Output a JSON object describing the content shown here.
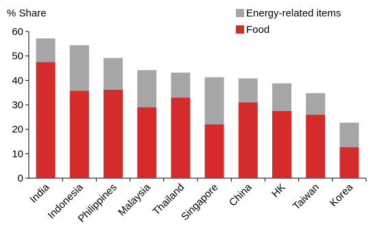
{
  "chart_data": {
    "type": "bar",
    "stacked": true,
    "ylabel": "% Share",
    "xlabel": "",
    "ylim": [
      0,
      60
    ],
    "yticks": [
      "0",
      "10",
      "20",
      "30",
      "40",
      "50",
      "60"
    ],
    "grid": false,
    "legend_position": "top-right",
    "categories": [
      "India",
      "Indonesia",
      "Philippines",
      "Malaysia",
      "Thailand",
      "Singapore",
      "China",
      "HK",
      "Taiwan",
      "Korea"
    ],
    "series": [
      {
        "name": "Food",
        "color": "#d52b2b",
        "values": [
          47.5,
          35.8,
          36.2,
          29.0,
          33.0,
          22.0,
          31.0,
          27.5,
          26.0,
          12.7
        ]
      },
      {
        "name": "Energy-related items",
        "color": "#a6a6a6",
        "values": [
          9.7,
          18.6,
          13.0,
          15.2,
          10.2,
          19.3,
          9.8,
          11.3,
          8.8,
          10.0
        ]
      }
    ],
    "legend_order": [
      "Energy-related items",
      "Food"
    ]
  }
}
